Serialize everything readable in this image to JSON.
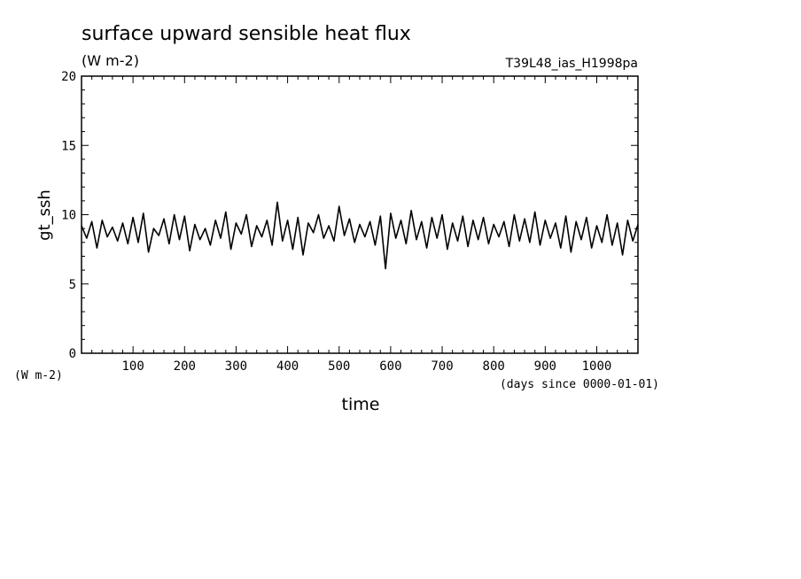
{
  "chart_data": {
    "type": "line",
    "title": "surface upward sensible heat flux",
    "units": "(W m-2)",
    "run_label": "T39L48_ias_H1998pa",
    "ylabel": "gt_ssh",
    "y_unit_label": "(W m-2)",
    "xlabel": "time",
    "x_unit_label": "(days since 0000-01-01)",
    "xlim": [
      0,
      1080
    ],
    "ylim": [
      0,
      20
    ],
    "x_ticks": [
      100,
      200,
      300,
      400,
      500,
      600,
      700,
      800,
      900,
      1000
    ],
    "y_ticks": [
      0,
      5,
      10,
      15,
      20
    ],
    "grid": false,
    "line_color": "#000000",
    "series": [
      {
        "x": [
          0,
          10,
          20,
          30,
          40,
          50,
          60,
          70,
          80,
          90,
          100,
          110,
          120,
          130,
          140,
          150,
          160,
          170,
          180,
          190,
          200,
          210,
          220,
          230,
          240,
          250,
          260,
          270,
          280,
          290,
          300,
          310,
          320,
          330,
          340,
          350,
          360,
          370,
          380,
          390,
          400,
          410,
          420,
          430,
          440,
          450,
          460,
          470,
          480,
          490,
          500,
          510,
          520,
          530,
          540,
          550,
          560,
          570,
          580,
          590,
          600,
          610,
          620,
          630,
          640,
          650,
          660,
          670,
          680,
          690,
          700,
          710,
          720,
          730,
          740,
          750,
          760,
          770,
          780,
          790,
          800,
          810,
          820,
          830,
          840,
          850,
          860,
          870,
          880,
          890,
          900,
          910,
          920,
          930,
          940,
          950,
          960,
          970,
          980,
          990,
          1000,
          1010,
          1020,
          1030,
          1040,
          1050,
          1060,
          1070,
          1080
        ],
        "y": [
          9.2,
          8.3,
          9.5,
          7.6,
          9.6,
          8.4,
          9.1,
          8.1,
          9.4,
          7.9,
          9.8,
          8.0,
          10.1,
          7.3,
          9.0,
          8.5,
          9.7,
          7.9,
          10.0,
          8.2,
          9.9,
          7.4,
          9.3,
          8.2,
          9.0,
          7.8,
          9.6,
          8.3,
          10.2,
          7.5,
          9.4,
          8.6,
          10.0,
          7.7,
          9.2,
          8.4,
          9.6,
          7.8,
          10.9,
          8.1,
          9.6,
          7.5,
          9.8,
          7.1,
          9.4,
          8.7,
          10.0,
          8.3,
          9.2,
          8.1,
          10.6,
          8.5,
          9.7,
          8.0,
          9.3,
          8.4,
          9.5,
          7.8,
          9.9,
          6.1,
          10.1,
          8.3,
          9.6,
          7.9,
          10.3,
          8.2,
          9.5,
          7.6,
          9.8,
          8.3,
          10.0,
          7.5,
          9.4,
          8.1,
          9.9,
          7.7,
          9.6,
          8.2,
          9.8,
          7.9,
          9.3,
          8.4,
          9.5,
          7.7,
          10.0,
          8.1,
          9.7,
          8.0,
          10.2,
          7.8,
          9.6,
          8.3,
          9.4,
          7.6,
          9.9,
          7.3,
          9.5,
          8.2,
          9.8,
          7.6,
          9.2,
          8.0,
          10.0,
          7.8,
          9.4,
          7.1,
          9.6,
          8.1,
          9.3
        ]
      }
    ]
  }
}
